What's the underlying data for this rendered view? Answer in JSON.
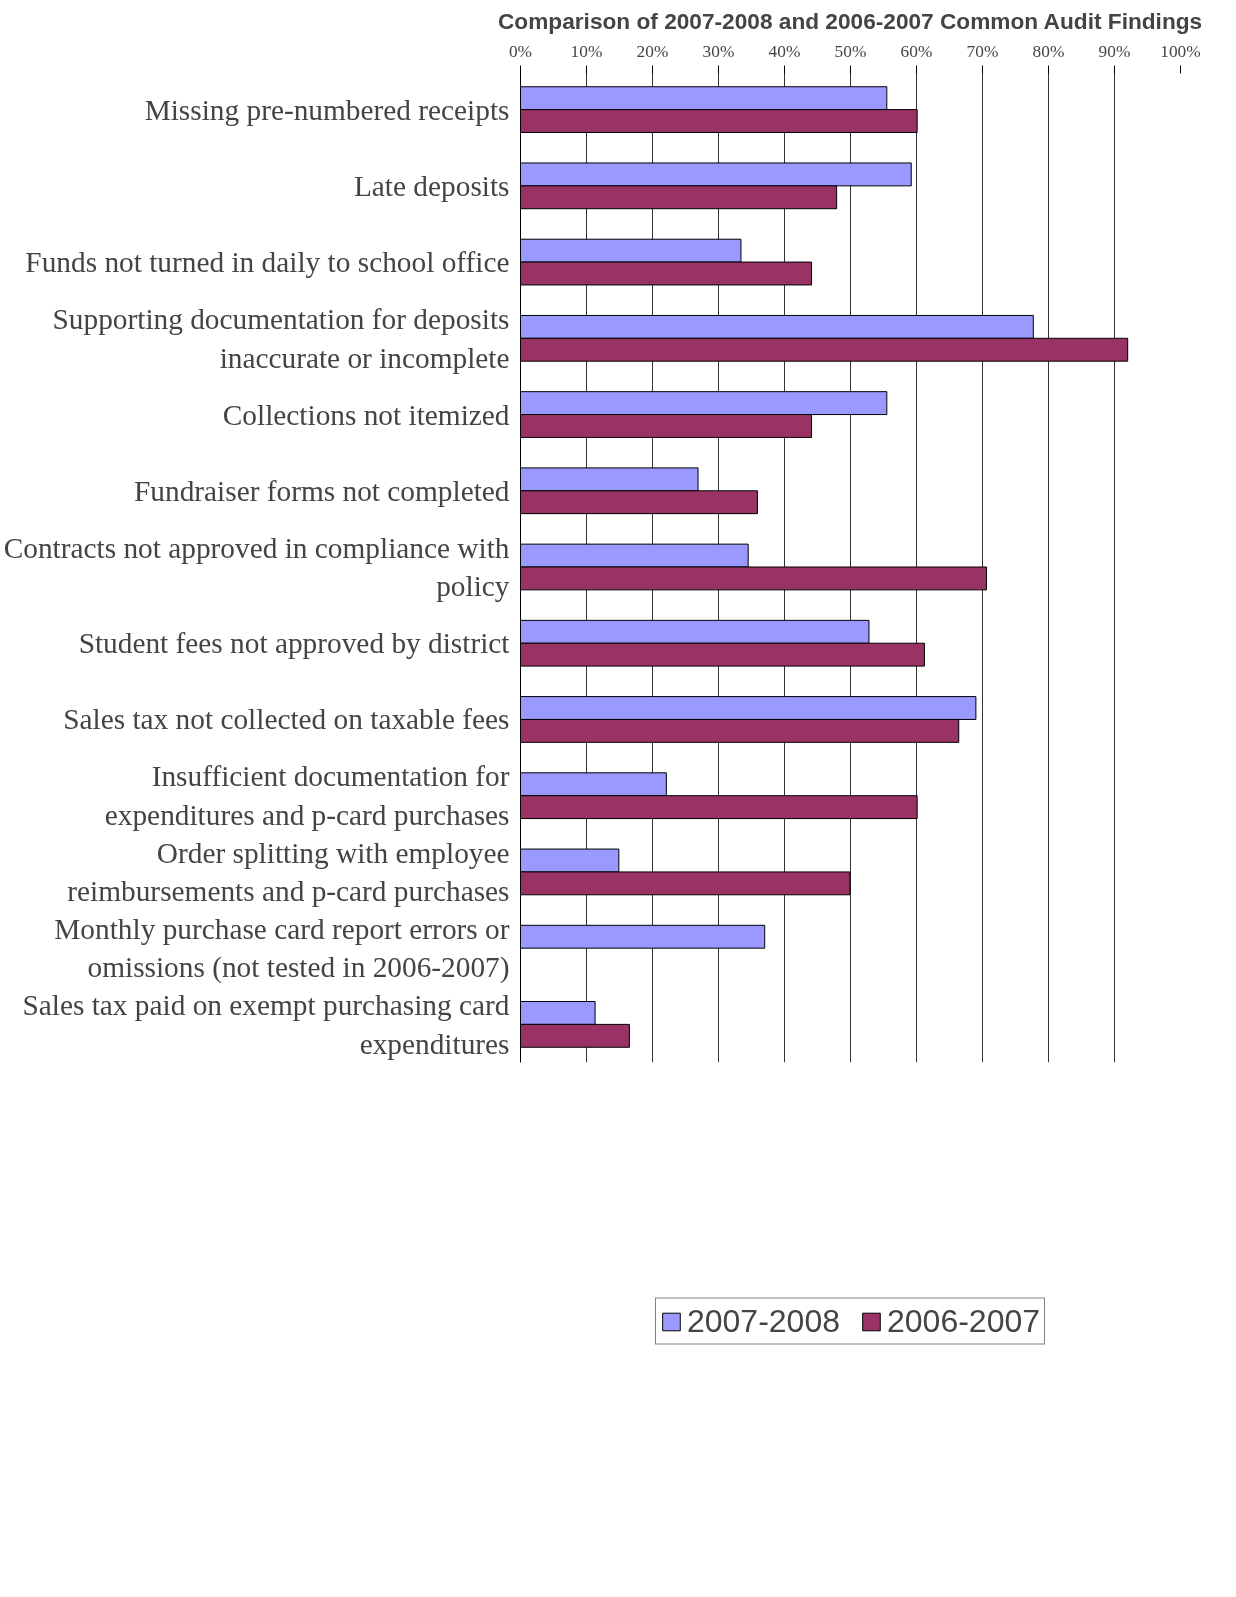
{
  "chart_data": {
    "type": "bar",
    "orientation": "horizontal",
    "title": "Comparison of 2007-2008 and 2006-2007 Common Audit Findings",
    "categories": [
      "Missing pre-numbered receipts",
      "Late deposits",
      "Funds not turned in daily to school office",
      "Supporting documentation for deposits inaccurate or incomplete",
      "Collections not itemized",
      "Fundraiser forms not completed",
      "Contracts not approved in compliance with policy",
      "Student fees not approved by district",
      "Sales tax not collected on taxable fees",
      "Insufficient documentation for expenditures and p-card purchases",
      "Order splitting with employee reimbursements and p-card purchases",
      "Monthly purchase card report errors or omissions (not tested in 2006-2007)",
      "Sales tax paid on exempt purchasing card expenditures"
    ],
    "series": [
      {
        "name": "2007-2008",
        "color": "#9999ff",
        "values": [
          55.5,
          59.2,
          33.4,
          77.7,
          55.5,
          26.9,
          34.5,
          52.8,
          69.0,
          22.1,
          14.9,
          37.0,
          11.3
        ]
      },
      {
        "name": "2006-2007",
        "color": "#993366",
        "values": [
          60.1,
          47.9,
          44.1,
          92.0,
          44.1,
          35.9,
          70.6,
          61.2,
          66.4,
          60.1,
          49.9,
          null,
          16.5
        ]
      }
    ],
    "xlim": [
      0,
      100
    ],
    "xticks": [
      {
        "value": 0,
        "label": "0%"
      },
      {
        "value": 10,
        "label": "10%"
      },
      {
        "value": 20,
        "label": "20%"
      },
      {
        "value": 30,
        "label": "30%"
      },
      {
        "value": 40,
        "label": "40%"
      },
      {
        "value": 50,
        "label": "50%"
      },
      {
        "value": 60,
        "label": "60%"
      },
      {
        "value": 70,
        "label": "70%"
      },
      {
        "value": 80,
        "label": "80%"
      },
      {
        "value": 90,
        "label": "90%"
      },
      {
        "value": 100,
        "label": "100%"
      }
    ],
    "grid": "x",
    "legend": "bottom"
  }
}
